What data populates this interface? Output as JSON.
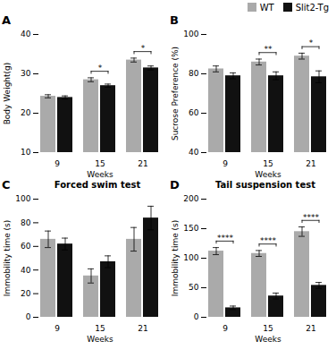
{
  "chart_data": [
    {
      "type": "bar",
      "title": "A",
      "xlabel": "Weeks",
      "ylabel": "Body Weight(g)",
      "categories": [
        "9",
        "15",
        "21"
      ],
      "ylim": [
        10,
        40
      ],
      "yticks": [
        10,
        20,
        30,
        40
      ],
      "grid": false,
      "legend": "upper right",
      "series": [
        {
          "name": "WT",
          "color": "#aaaaaa",
          "values": [
            24.3,
            28.5,
            33.5
          ],
          "errors": [
            0.4,
            0.5,
            0.5
          ]
        },
        {
          "name": "Slit2-Tg",
          "color": "#111111",
          "values": [
            24.0,
            27.0,
            31.5
          ],
          "errors": [
            0.4,
            0.4,
            0.5
          ]
        }
      ],
      "significance": [
        {
          "category": "15",
          "label": "*"
        },
        {
          "category": "21",
          "label": "*"
        }
      ]
    },
    {
      "type": "bar",
      "title": "B",
      "xlabel": "Weeks",
      "ylabel": "Sucrose Preference (%)",
      "categories": [
        "9",
        "15",
        "21"
      ],
      "ylim": [
        40,
        100
      ],
      "yticks": [
        40,
        60,
        80,
        100
      ],
      "grid": false,
      "legend": "upper right",
      "series": [
        {
          "name": "WT",
          "color": "#aaaaaa",
          "values": [
            82.5,
            86.0,
            89.0
          ],
          "errors": [
            1.5,
            1.5,
            1.5
          ]
        },
        {
          "name": "Slit2-Tg",
          "color": "#111111",
          "values": [
            79.0,
            79.0,
            78.5
          ],
          "errors": [
            1.5,
            2.0,
            3.0
          ]
        }
      ],
      "significance": [
        {
          "category": "15",
          "label": "**"
        },
        {
          "category": "21",
          "label": "*"
        }
      ]
    },
    {
      "type": "bar",
      "title": "C",
      "subtitle": "Forced swim test",
      "xlabel": "Weeks",
      "ylabel": "Immobility time (s)",
      "categories": [
        "9",
        "15",
        "21"
      ],
      "ylim": [
        0,
        100
      ],
      "yticks": [
        0,
        20,
        40,
        60,
        80,
        100
      ],
      "grid": false,
      "legend": "upper right",
      "series": [
        {
          "name": "WT",
          "color": "#aaaaaa",
          "values": [
            66.0,
            35.0,
            66.0
          ],
          "errors": [
            7.0,
            6.0,
            10.0
          ]
        },
        {
          "name": "Slit2-Tg",
          "color": "#111111",
          "values": [
            62.0,
            47.0,
            84.0
          ],
          "errors": [
            5.0,
            5.0,
            10.0
          ]
        }
      ],
      "significance": []
    },
    {
      "type": "bar",
      "title": "D",
      "subtitle": "Tail suspension test",
      "xlabel": "Weeks",
      "ylabel": "Immobility time (s)",
      "categories": [
        "9",
        "15",
        "21"
      ],
      "ylim": [
        0,
        200
      ],
      "yticks": [
        0,
        50,
        100,
        150,
        200
      ],
      "grid": false,
      "legend": "upper right",
      "series": [
        {
          "name": "WT",
          "color": "#aaaaaa",
          "values": [
            112.0,
            108.0,
            145.0
          ],
          "errors": [
            6.0,
            5.0,
            8.0
          ]
        },
        {
          "name": "Slit2-Tg",
          "color": "#111111",
          "values": [
            16.0,
            36.0,
            54.0
          ],
          "errors": [
            3.0,
            5.0,
            5.0
          ]
        }
      ],
      "significance": [
        {
          "category": "9",
          "label": "****"
        },
        {
          "category": "15",
          "label": "****"
        },
        {
          "category": "21",
          "label": "****"
        }
      ]
    }
  ]
}
